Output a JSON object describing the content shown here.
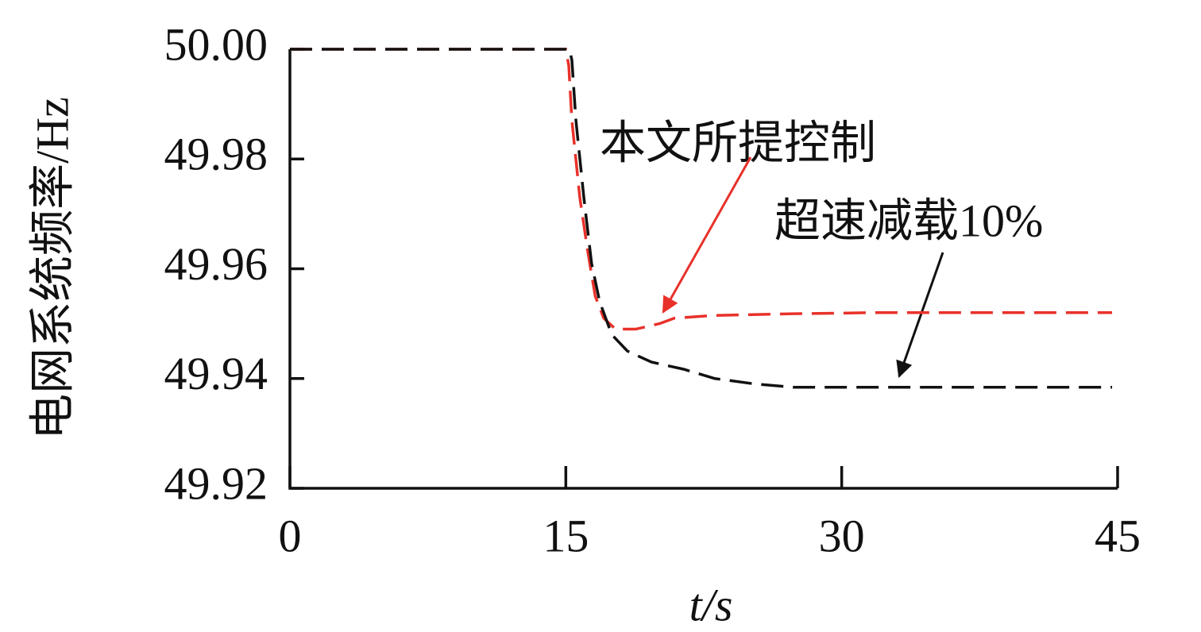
{
  "chart_data": {
    "type": "line",
    "x_label": "t/s",
    "y_label": "电网系统频率/Hz",
    "xlim": [
      0,
      45
    ],
    "xticks": [
      0,
      15,
      30,
      45
    ],
    "ylim": [
      49.92,
      50
    ],
    "yticks": [
      {
        "value": 50,
        "label": "50.00"
      },
      49.98,
      49.96,
      49.94,
      49.92
    ],
    "series": [
      {
        "name": "本文所提控制",
        "color": "#e8312a",
        "x": [
          0,
          15,
          15.16,
          15.33,
          15.76,
          16.2,
          16.6,
          17.06,
          17.7,
          18.8,
          20.1,
          20.9,
          23.1,
          27.4,
          31.7,
          36.06,
          44.7
        ],
        "values": [
          50,
          50,
          49.997,
          49.987,
          49.973,
          49.963,
          49.955,
          49.951,
          49.949,
          49.949,
          49.95,
          49.951,
          49.9515,
          49.9518,
          49.952,
          49.952,
          49.952
        ]
      },
      {
        "name": "超速减载10%",
        "color": "#111111",
        "x": [
          0,
          15.2,
          15.33,
          15.55,
          15.98,
          16.4,
          16.84,
          17.5,
          18.35,
          19.65,
          21.4,
          23.1,
          25.3,
          27.4,
          31.7,
          44.7
        ],
        "values": [
          50,
          50,
          49.998,
          49.987,
          49.973,
          49.961,
          49.954,
          49.948,
          49.945,
          49.943,
          49.9417,
          49.94,
          49.939,
          49.9384,
          49.9384,
          49.9384
        ]
      }
    ]
  }
}
